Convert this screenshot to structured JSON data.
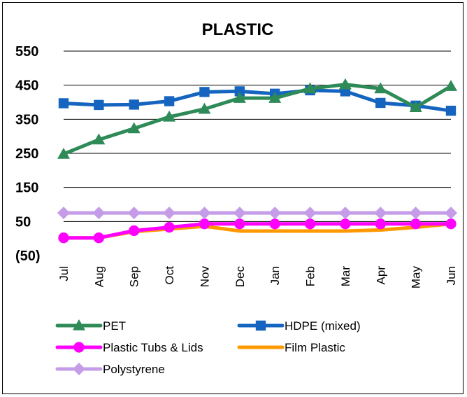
{
  "chart_data": {
    "type": "line",
    "title": "PLASTIC",
    "xlabel": "",
    "ylabel": "",
    "categories": [
      "Jul",
      "Aug",
      "Sep",
      "Oct",
      "Nov",
      "Dec",
      "Jan",
      "Feb",
      "Mar",
      "Apr",
      "May",
      "Jun"
    ],
    "y_tick_labels": [
      "(50)",
      "50",
      "150",
      "250",
      "350",
      "450",
      "550"
    ],
    "y_tick_values": [
      -50,
      50,
      150,
      250,
      350,
      450,
      550
    ],
    "ylim": [
      -50,
      550
    ],
    "grid": true,
    "legend_position": "bottom",
    "series": [
      {
        "name": "PET",
        "color": "#2E8B57",
        "marker": "triangle",
        "values": [
          248,
          290,
          323,
          357,
          380,
          412,
          412,
          440,
          452,
          440,
          385,
          447
        ]
      },
      {
        "name": "HDPE (mixed)",
        "color": "#1565C0",
        "marker": "square",
        "values": [
          397,
          392,
          393,
          403,
          430,
          432,
          425,
          435,
          432,
          398,
          390,
          375
        ]
      },
      {
        "name": "Plastic Tubs & Lids",
        "color": "#FF00FF",
        "marker": "circle",
        "values": [
          2,
          2,
          23,
          33,
          43,
          43,
          43,
          43,
          43,
          43,
          43,
          43
        ]
      },
      {
        "name": "Film Plastic",
        "color": "#FF9900",
        "marker": "none",
        "values": [
          2,
          2,
          20,
          28,
          36,
          22,
          22,
          22,
          22,
          25,
          33,
          43
        ]
      },
      {
        "name": "Polystyrene",
        "color": "#C49CE8",
        "marker": "diamond",
        "values": [
          75,
          75,
          75,
          75,
          75,
          75,
          75,
          75,
          75,
          75,
          75,
          75
        ]
      }
    ]
  }
}
